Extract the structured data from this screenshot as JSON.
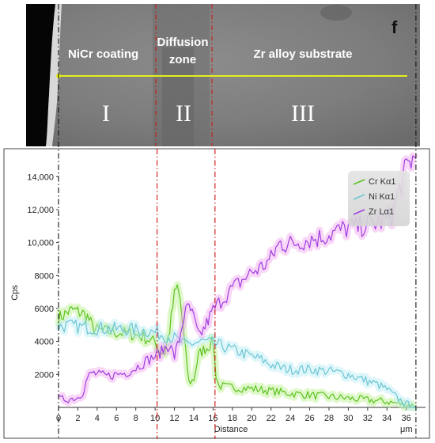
{
  "sem": {
    "panel_label": "f",
    "zones": [
      {
        "title": "NiCr coating",
        "numeral": "I"
      },
      {
        "title_lines": [
          "Diffusion",
          "zone"
        ],
        "numeral": "II"
      },
      {
        "title": "Zr alloy substrate",
        "numeral": "III"
      }
    ],
    "colors": {
      "scan_line": "#e6ee1a",
      "background_grey": "#7d7d7d"
    }
  },
  "chart_data": {
    "type": "line",
    "xlabel": "Distance",
    "x_unit": "μm",
    "ylabel": "Cps",
    "xlim": [
      0,
      37.5
    ],
    "ylim": [
      0,
      15500
    ],
    "x_ticks": [
      0,
      2,
      4,
      6,
      8,
      10,
      12,
      14,
      16,
      18,
      20,
      22,
      24,
      26,
      28,
      30,
      32,
      34,
      36
    ],
    "y_ticks": [
      2000,
      4000,
      6000,
      8000,
      10000,
      12000,
      14000
    ],
    "y_tick_labels": [
      "2000",
      "4000",
      "6000",
      "8000",
      "10,000",
      "12,000",
      "14,000"
    ],
    "legend_position": "top-right",
    "boundaries": [
      {
        "x": 0,
        "style": "dash-dot",
        "color": "#111111"
      },
      {
        "x": 10.2,
        "style": "dash-dot",
        "color": "#d01010"
      },
      {
        "x": 16.2,
        "style": "dash-dot",
        "color": "#d01010"
      },
      {
        "x": 37,
        "style": "dash-dot",
        "color": "#111111"
      }
    ],
    "series": [
      {
        "name": "Cr Kα1",
        "color": "#5cc21e",
        "halo": "#b8f08a",
        "x": [
          0,
          0.5,
          1,
          1.5,
          2,
          2.5,
          3,
          3.5,
          4,
          5,
          6,
          7,
          8,
          9,
          10,
          10.5,
          11,
          11.5,
          12,
          12.3,
          12.6,
          13,
          13.5,
          14,
          14.5,
          15,
          15.5,
          16,
          16.3,
          16.6,
          18,
          20,
          22,
          24,
          26,
          28,
          30,
          32,
          34,
          35,
          36,
          37
        ],
        "values": [
          5400,
          5600,
          5800,
          5900,
          5800,
          5700,
          5500,
          4900,
          4700,
          4600,
          4550,
          4500,
          4400,
          4200,
          3950,
          3400,
          3300,
          4700,
          6800,
          7300,
          6500,
          4200,
          1500,
          1700,
          3200,
          3500,
          3700,
          4000,
          2000,
          1300,
          1200,
          1150,
          1000,
          850,
          750,
          650,
          550,
          450,
          350,
          250,
          150,
          80
        ]
      },
      {
        "name": "Ni Kα1",
        "color": "#6cc6d4",
        "halo": "#b9ecf3",
        "x": [
          0,
          1,
          2,
          3,
          4,
          5,
          6,
          7,
          8,
          9,
          10,
          11,
          12,
          13,
          14,
          15,
          16,
          17,
          18,
          19,
          20,
          21,
          22,
          23,
          24,
          25,
          26,
          27,
          28,
          29,
          30,
          31,
          32,
          33,
          34,
          35,
          36,
          37
        ],
        "values": [
          4900,
          4950,
          4900,
          4850,
          4800,
          4800,
          4750,
          4750,
          4700,
          4650,
          4550,
          4350,
          4200,
          3800,
          3900,
          4000,
          3900,
          3700,
          3500,
          3300,
          3100,
          2900,
          2600,
          2400,
          2300,
          2300,
          2300,
          2250,
          2200,
          2100,
          2000,
          1800,
          1600,
          1400,
          1100,
          600,
          200,
          80
        ]
      },
      {
        "name": "Zr Lα1",
        "color": "#a03ee0",
        "halo": "#f2a6ef",
        "x": [
          0,
          1,
          2,
          2.5,
          3,
          3.5,
          4,
          5,
          6,
          7,
          8,
          9,
          10,
          10.5,
          11,
          11.5,
          12,
          12.5,
          13,
          13.5,
          14,
          14.5,
          15,
          15.5,
          16,
          17,
          18,
          19,
          20,
          21,
          22,
          22.5,
          23,
          23.5,
          24,
          25,
          26,
          27,
          28,
          29,
          30,
          31,
          32,
          33,
          34,
          34.5,
          35,
          35.5,
          36,
          36.5,
          37
        ],
        "values": [
          500,
          500,
          600,
          900,
          1800,
          2100,
          2000,
          1900,
          2000,
          2100,
          2400,
          2800,
          3100,
          3300,
          3600,
          3800,
          3100,
          4100,
          5600,
          6100,
          5400,
          4300,
          4700,
          5300,
          5900,
          6600,
          7200,
          7700,
          8200,
          8500,
          9000,
          9600,
          10000,
          9900,
          9900,
          10100,
          10200,
          10300,
          10500,
          10700,
          10900,
          10950,
          11100,
          11200,
          11400,
          11700,
          12600,
          13600,
          14500,
          15000,
          15100
        ]
      }
    ]
  }
}
